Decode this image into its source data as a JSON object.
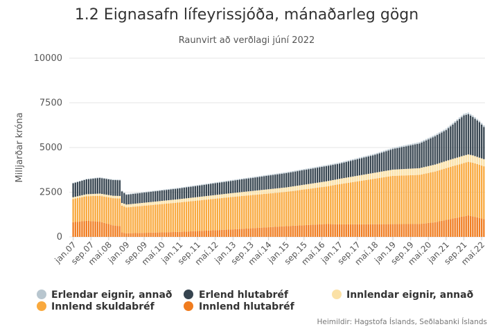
{
  "chart_data": {
    "type": "bar",
    "stacked": true,
    "title": "1.2 Eignasafn lífeyrissjóða, mánaðarleg gögn",
    "subtitle": "Raunvirt að verðlagi júní 2022",
    "ylabel": "Milljarðar króna",
    "ylim": [
      0,
      10000
    ],
    "yticks": [
      "0",
      "2500",
      "5000",
      "7500",
      "10000"
    ],
    "ytick_values": [
      0,
      2500,
      5000,
      7500,
      10000
    ],
    "grid": true,
    "legend_position": "bottom",
    "source": "Heimildir: Hagstofa Íslands, Seðlabanki Íslands",
    "xtick_labels": [
      "jan.07",
      "sep.07",
      "maí.08",
      "jan.09",
      "sep.09",
      "maí.10",
      "jan.11",
      "sep.11",
      "maí.12",
      "jan.13",
      "sep.13",
      "maí.14",
      "jan.15",
      "sep.15",
      "maí.16",
      "jan.17",
      "sep.17",
      "maí.18",
      "jan.19",
      "sep.19",
      "maí.20",
      "jan.21",
      "sep.21",
      "maí.22"
    ],
    "xtick_months": [
      0,
      8,
      16,
      24,
      32,
      40,
      48,
      56,
      64,
      72,
      80,
      88,
      96,
      104,
      112,
      120,
      128,
      136,
      144,
      152,
      160,
      168,
      176,
      184
    ],
    "start": "2007-01",
    "period": "monthly",
    "count": 186,
    "series_order": [
      "Innlend hlutabréf",
      "Innlend skuldabréf",
      "Innlendar eignir, annað",
      "Erlend hlutabréf",
      "Erlendar eignir, annað"
    ],
    "series": [
      {
        "name": "Innlend hlutabréf",
        "color": "#f07c1f",
        "knots": [
          [
            0,
            820
          ],
          [
            6,
            900
          ],
          [
            12,
            850
          ],
          [
            18,
            650
          ],
          [
            21,
            600
          ],
          [
            22,
            250
          ],
          [
            24,
            200
          ],
          [
            48,
            280
          ],
          [
            72,
            420
          ],
          [
            96,
            600
          ],
          [
            114,
            720
          ],
          [
            120,
            700
          ],
          [
            156,
            720
          ],
          [
            163,
            820
          ],
          [
            170,
            1000
          ],
          [
            178,
            1200
          ],
          [
            180,
            1150
          ],
          [
            185,
            1000
          ]
        ]
      },
      {
        "name": "Innlend skuldabréf",
        "color": "#f9a93e",
        "knots": [
          [
            0,
            1300
          ],
          [
            12,
            1450
          ],
          [
            21,
            1550
          ],
          [
            22,
            1500
          ],
          [
            24,
            1450
          ],
          [
            48,
            1650
          ],
          [
            72,
            1820
          ],
          [
            96,
            1920
          ],
          [
            114,
            2100
          ],
          [
            120,
            2250
          ],
          [
            144,
            2700
          ],
          [
            156,
            2750
          ],
          [
            168,
            2900
          ],
          [
            178,
            3000
          ],
          [
            180,
            3000
          ],
          [
            185,
            2950
          ]
        ]
      },
      {
        "name": "Innlendar eignir, annað",
        "color": "#fbe1a6",
        "knots": [
          [
            0,
            100
          ],
          [
            21,
            140
          ],
          [
            24,
            160
          ],
          [
            60,
            200
          ],
          [
            96,
            250
          ],
          [
            120,
            300
          ],
          [
            144,
            350
          ],
          [
            168,
            400
          ],
          [
            176,
            420
          ],
          [
            185,
            400
          ]
        ]
      },
      {
        "name": "Erlend hlutabréf",
        "color": "#36444f",
        "knots": [
          [
            0,
            780
          ],
          [
            12,
            880
          ],
          [
            21,
            880
          ],
          [
            22,
            650
          ],
          [
            24,
            550
          ],
          [
            48,
            600
          ],
          [
            72,
            690
          ],
          [
            96,
            800
          ],
          [
            114,
            850
          ],
          [
            120,
            850
          ],
          [
            136,
            1000
          ],
          [
            156,
            1380
          ],
          [
            168,
            1730
          ],
          [
            176,
            2250
          ],
          [
            178,
            2250
          ],
          [
            183,
            1980
          ],
          [
            185,
            1800
          ]
        ]
      },
      {
        "name": "Erlendar eignir, annað",
        "color": "#b8c6cf",
        "knots": [
          [
            0,
            30
          ],
          [
            48,
            40
          ],
          [
            96,
            50
          ],
          [
            144,
            70
          ],
          [
            180,
            90
          ],
          [
            185,
            90
          ]
        ]
      }
    ]
  },
  "legend": [
    {
      "label": "Erlendar eignir, annað",
      "color": "#b8c6cf"
    },
    {
      "label": "Erlend hlutabréf",
      "color": "#36444f"
    },
    {
      "label": "Innlendar eignir, annað",
      "color": "#fbe1a6"
    },
    {
      "label": "Innlend skuldabréf",
      "color": "#f9a93e"
    },
    {
      "label": "Innlend hlutabréf",
      "color": "#f07c1f"
    }
  ]
}
